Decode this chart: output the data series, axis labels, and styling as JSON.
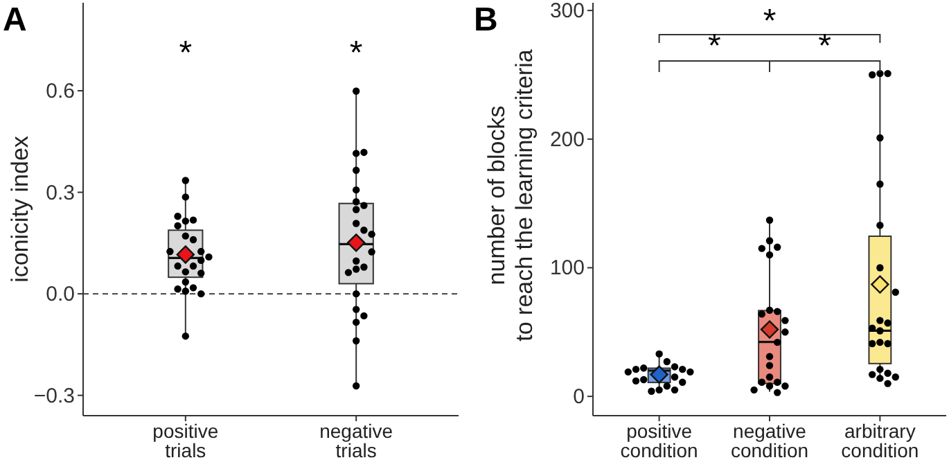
{
  "chart_data": [
    {
      "type": "box",
      "title": "A",
      "ylabel": "iconicity index",
      "categories": [
        "positive\ntrials",
        "negative\ntrials"
      ],
      "ylim": [
        -0.36,
        0.86
      ],
      "yticks": [
        {
          "value": -0.3,
          "label": "−0.3"
        },
        {
          "value": 0,
          "label": "0.0"
        },
        {
          "value": 0.3,
          "label": "0.3"
        },
        {
          "value": 0.6,
          "label": "0.6"
        }
      ],
      "grid": false,
      "ref_lines": [
        {
          "axis": "y",
          "value": 0,
          "line_style": "dashed",
          "color": "#555555"
        }
      ],
      "annotations": [
        "*",
        "*"
      ],
      "series": [
        {
          "colors": [
            "#d9d9d9",
            "#d9d9d9"
          ],
          "boxes": [
            {
              "low": -0.125,
              "q1": 0.049,
              "median": 0.106,
              "q3": 0.188,
              "high": 0.335
            },
            {
              "low": -0.272,
              "q1": 0.03,
              "median": 0.147,
              "q3": 0.267,
              "high": 0.599
            }
          ]
        },
        {
          "type": "scatter",
          "color": "#000000",
          "marker": "circle",
          "x": [
            "positive\ntrials",
            "positive\ntrials",
            "positive\ntrials",
            "positive\ntrials",
            "positive\ntrials",
            "positive\ntrials",
            "positive\ntrials",
            "positive\ntrials",
            "positive\ntrials",
            "positive\ntrials",
            "positive\ntrials",
            "positive\ntrials",
            "positive\ntrials",
            "positive\ntrials",
            "positive\ntrials",
            "positive\ntrials",
            "positive\ntrials",
            "positive\ntrials",
            "positive\ntrials",
            "positive\ntrials",
            "positive\ntrials",
            "positive\ntrials",
            "negative\ntrials",
            "negative\ntrials",
            "negative\ntrials",
            "negative\ntrials",
            "negative\ntrials",
            "negative\ntrials",
            "negative\ntrials",
            "negative\ntrials",
            "negative\ntrials",
            "negative\ntrials",
            "negative\ntrials",
            "negative\ntrials",
            "negative\ntrials",
            "negative\ntrials",
            "negative\ntrials",
            "negative\ntrials",
            "negative\ntrials",
            "negative\ntrials",
            "negative\ntrials",
            "negative\ntrials",
            "negative\ntrials",
            "negative\ntrials"
          ],
          "values": [
            0.335,
            0.286,
            0.215,
            0.218,
            0.201,
            0.229,
            0.171,
            0.16,
            0.125,
            0.125,
            0.109,
            0.099,
            0.082,
            0.082,
            0.065,
            0.061,
            0.035,
            0.018,
            0.014,
            0.008,
            0.0,
            -0.125,
            0.599,
            0.415,
            0.418,
            0.365,
            0.307,
            0.272,
            0.261,
            0.249,
            0.208,
            0.188,
            0.176,
            0.124,
            0.097,
            0.079,
            0.073,
            0.063,
            0.0,
            -0.046,
            -0.065,
            -0.084,
            -0.139,
            -0.272
          ]
        },
        {
          "type": "scatter",
          "marker": "diamond",
          "x": [
            "positive\ntrials",
            "negative\ntrials"
          ],
          "colors": [
            "#e8141b",
            "#e8141b"
          ],
          "values": [
            0.116,
            0.151
          ]
        }
      ]
    },
    {
      "type": "box",
      "title": "B",
      "ylabel": "number of blocks\nto reach the learning criteria",
      "categories": [
        "positive\ncondition",
        "negative\ncondition",
        "arbitrary\ncondition"
      ],
      "ylim": [
        -15,
        306
      ],
      "yticks": [
        0,
        100,
        200,
        300
      ],
      "grid": false,
      "annotations": [
        "*",
        "*",
        "*"
      ],
      "series": [
        {
          "colors": [
            "#6f9ee3",
            "#ea8a7f",
            "#fbe992"
          ],
          "boxes": [
            {
              "low": 3.6,
              "q1": 10.8,
              "median": 20,
              "q3": 21.9,
              "high": 32.7
            },
            {
              "low": 3.6,
              "q1": 10,
              "median": 42.3,
              "q3": 66.7,
              "high": 136
            },
            {
              "low": 12.6,
              "q1": 25.5,
              "median": 51,
              "q3": 124.5,
              "high": 251
            }
          ]
        },
        {
          "type": "scatter",
          "color": "#000000",
          "marker": "circle",
          "x": [
            "positive\ncondition",
            "positive\ncondition",
            "positive\ncondition",
            "positive\ncondition",
            "positive\ncondition",
            "positive\ncondition",
            "positive\ncondition",
            "positive\ncondition",
            "positive\ncondition",
            "positive\ncondition",
            "positive\ncondition",
            "positive\ncondition",
            "positive\ncondition",
            "positive\ncondition",
            "positive\ncondition",
            "positive\ncondition",
            "negative\ncondition",
            "negative\ncondition",
            "negative\ncondition",
            "negative\ncondition",
            "negative\ncondition",
            "negative\ncondition",
            "negative\ncondition",
            "negative\ncondition",
            "negative\ncondition",
            "negative\ncondition",
            "negative\ncondition",
            "negative\ncondition",
            "negative\ncondition",
            "negative\ncondition",
            "negative\ncondition",
            "negative\ncondition",
            "negative\ncondition",
            "negative\ncondition",
            "negative\ncondition",
            "negative\ncondition",
            "arbitrary\ncondition",
            "arbitrary\ncondition",
            "arbitrary\ncondition",
            "arbitrary\ncondition",
            "arbitrary\ncondition",
            "arbitrary\ncondition",
            "arbitrary\ncondition",
            "arbitrary\ncondition",
            "arbitrary\ncondition",
            "arbitrary\ncondition",
            "arbitrary\ncondition",
            "arbitrary\ncondition",
            "arbitrary\ncondition",
            "arbitrary\ncondition",
            "arbitrary\ncondition",
            "arbitrary\ncondition",
            "arbitrary\ncondition",
            "arbitrary\ncondition",
            "arbitrary\ncondition",
            "arbitrary\ncondition",
            "arbitrary\ncondition"
          ],
          "values": [
            33,
            27,
            23,
            22,
            21,
            21,
            19,
            19,
            15,
            13,
            11,
            12,
            8,
            5,
            4,
            5,
            137,
            121,
            116,
            115,
            110,
            67,
            66,
            64,
            59,
            50,
            42,
            31,
            24,
            15,
            11,
            11,
            8,
            8,
            5,
            3,
            251,
            251,
            250,
            201,
            165,
            133,
            100,
            81,
            59,
            57,
            51,
            42,
            41,
            53,
            41,
            21,
            18,
            17,
            15,
            14,
            10
          ]
        },
        {
          "type": "scatter",
          "marker": "diamond",
          "x": [
            "positive\ncondition",
            "negative\ncondition",
            "arbitrary\ncondition"
          ],
          "colors": [
            "#1f63c9",
            "#d23b2b",
            "#fbe46e"
          ],
          "values": [
            17,
            52,
            87
          ]
        }
      ]
    }
  ]
}
